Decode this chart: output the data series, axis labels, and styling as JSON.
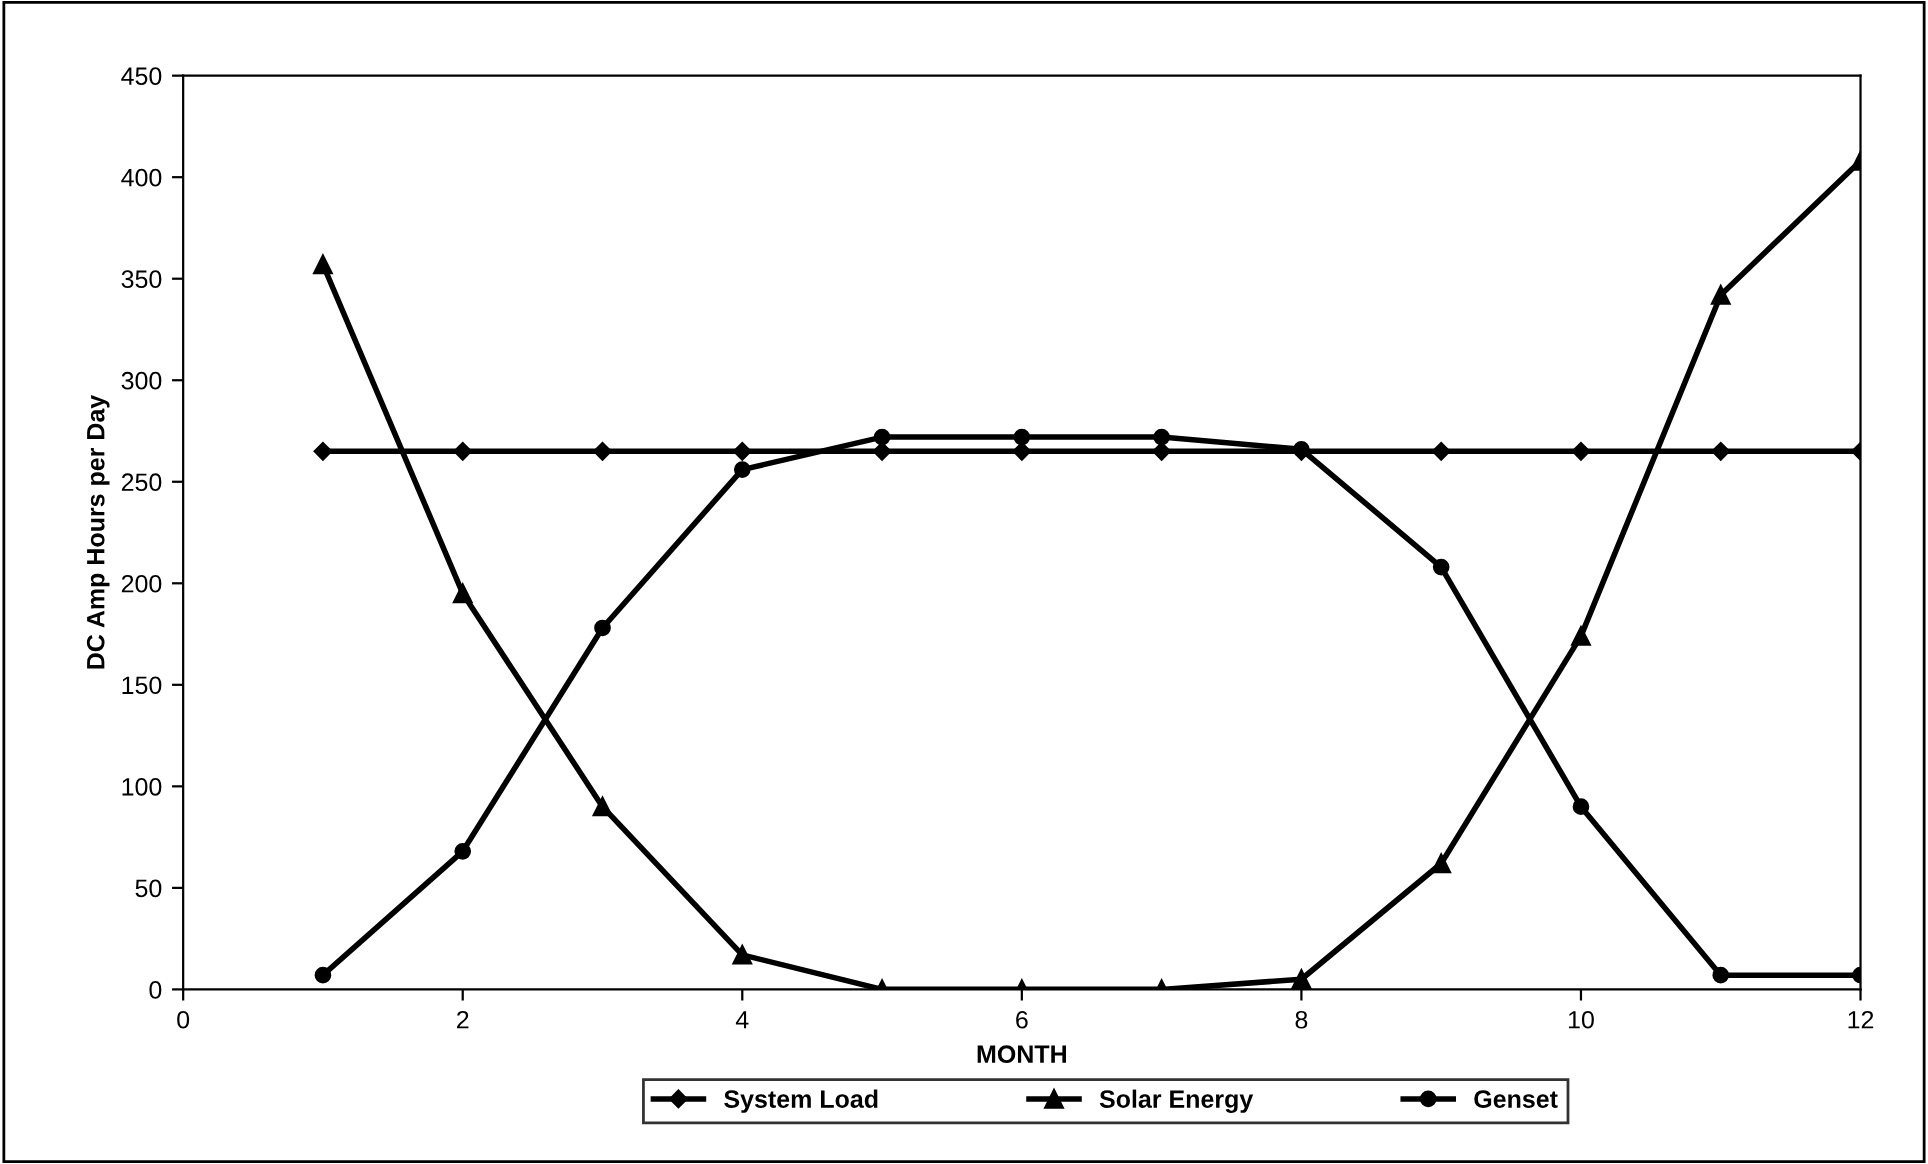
{
  "chart_data": {
    "type": "line",
    "xlabel": "MONTH",
    "ylabel": "DC Amp Hours per Day",
    "x": [
      1,
      2,
      3,
      4,
      5,
      6,
      7,
      8,
      9,
      10,
      11,
      12
    ],
    "series": [
      {
        "name": "System Load",
        "color": "#000000",
        "marker": "diamond",
        "values": [
          265,
          265,
          265,
          265,
          265,
          265,
          265,
          265,
          265,
          265,
          265,
          265
        ]
      },
      {
        "name": "Solar Energy",
        "color": "#000000",
        "marker": "triangle",
        "values": [
          357,
          195,
          90,
          17,
          0,
          0,
          0,
          5,
          62,
          174,
          342,
          408
        ]
      },
      {
        "name": "Genset",
        "color": "#000000",
        "marker": "circle",
        "values": [
          7,
          68,
          178,
          256,
          272,
          272,
          272,
          266,
          208,
          90,
          7,
          7
        ]
      }
    ],
    "xlim": [
      0,
      12
    ],
    "xticks": [
      0,
      2,
      4,
      6,
      8,
      10,
      12
    ],
    "ylim": [
      0,
      450
    ],
    "yticks": [
      0,
      50,
      100,
      150,
      200,
      250,
      300,
      350,
      400,
      450
    ],
    "grid": false,
    "legend": "bottom",
    "line_style": "solid"
  }
}
